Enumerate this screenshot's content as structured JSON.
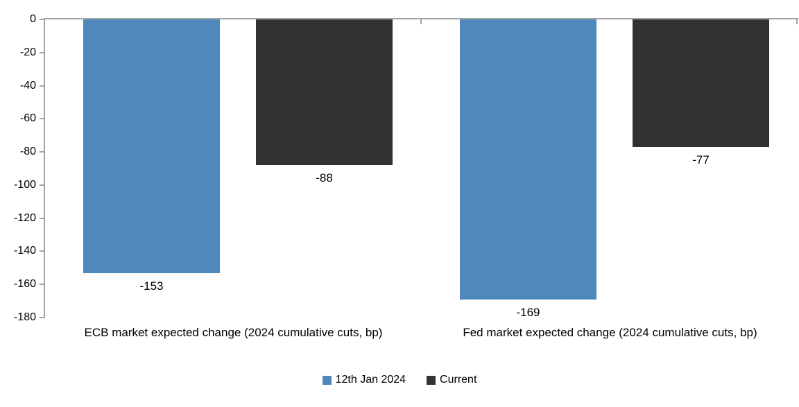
{
  "chart_data": {
    "type": "bar",
    "title": "",
    "xlabel": "",
    "ylabel": "",
    "categories": [
      "ECB market expected change (2024 cumulative cuts, bp)",
      "Fed market expected change (2024 cumulative cuts, bp)"
    ],
    "series": [
      {
        "name": "12th Jan 2024",
        "color": "#4F88BC",
        "values": [
          -153,
          -169
        ]
      },
      {
        "name": "Current",
        "color": "#323232",
        "values": [
          -88,
          -77
        ]
      }
    ],
    "data_labels": [
      [
        "-153",
        "-169"
      ],
      [
        "-88",
        "-77"
      ]
    ],
    "yticks": [
      0,
      -20,
      -40,
      -60,
      -80,
      -100,
      -120,
      -140,
      -160,
      -180
    ],
    "ylim": [
      -180,
      0
    ],
    "grid": false,
    "legend_position": "bottom",
    "axis_color": "#A3A3A3",
    "text_color": "#000000",
    "background": "#FFFFFF"
  }
}
